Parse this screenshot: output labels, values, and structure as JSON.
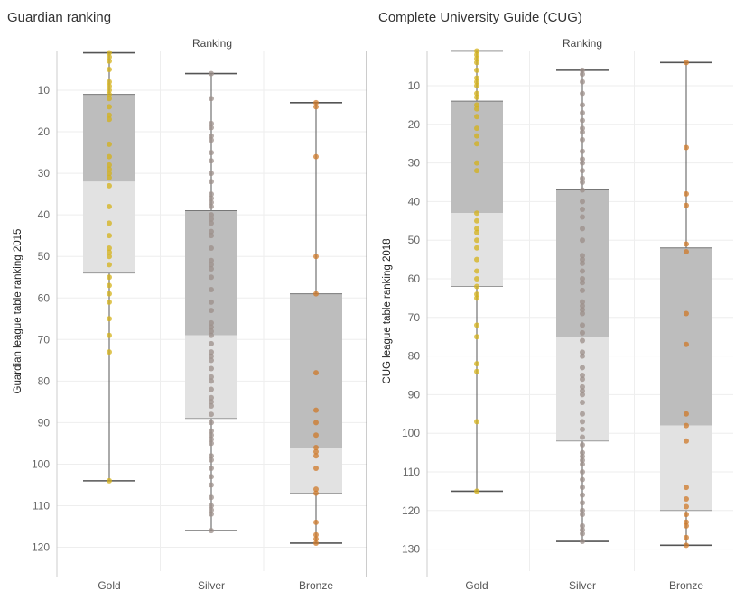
{
  "panels": [
    {
      "title": "Guardian ranking",
      "column_title": "Ranking",
      "ylabel": "Guardian league table ranking 2015"
    },
    {
      "title": "Complete University Guide (CUG)",
      "column_title": "Ranking",
      "ylabel": "CUG league table ranking 2018"
    }
  ],
  "colors": {
    "gold": "#d4b21a",
    "silver": "#9c8f8a",
    "bronze": "#cf7a2a",
    "box_dark": "#bdbdbd",
    "box_light": "#e2e2e2",
    "whisker": "#555555"
  },
  "chart_data": [
    {
      "type": "box",
      "title": "Guardian ranking",
      "column_title": "Ranking",
      "xlabel": "",
      "ylabel": "Guardian league table ranking 2015",
      "categories": [
        "Gold",
        "Silver",
        "Bronze"
      ],
      "y_ticks": [
        10,
        20,
        30,
        40,
        50,
        60,
        70,
        80,
        90,
        100,
        110,
        120
      ],
      "ylim": [
        1,
        123
      ],
      "y_reversed": true,
      "boxes": [
        {
          "name": "Gold",
          "min": 1,
          "q1": 11,
          "median": 32,
          "q3": 54,
          "max": 104
        },
        {
          "name": "Silver",
          "min": 6,
          "q1": 39,
          "median": 69,
          "q3": 89,
          "max": 116
        },
        {
          "name": "Bronze",
          "min": 13,
          "q1": 59,
          "median": 96,
          "q3": 107,
          "max": 119
        }
      ],
      "points": [
        {
          "category": "Gold",
          "values": [
            1,
            2,
            3,
            5,
            8,
            9,
            10,
            11,
            12,
            14,
            16,
            17,
            23,
            26,
            28,
            29,
            30,
            31,
            33,
            38,
            42,
            45,
            48,
            49,
            50,
            52,
            55,
            57,
            59,
            61,
            65,
            69,
            73,
            104
          ]
        },
        {
          "category": "Silver",
          "values": [
            6,
            12,
            18,
            19,
            21,
            22,
            25,
            27,
            30,
            32,
            35,
            36,
            37,
            38,
            40,
            41,
            42,
            44,
            45,
            48,
            51,
            52,
            53,
            55,
            58,
            61,
            63,
            66,
            67,
            68,
            69,
            71,
            73,
            74,
            75,
            77,
            79,
            80,
            82,
            84,
            85,
            86,
            88,
            90,
            92,
            93,
            94,
            95,
            98,
            99,
            101,
            103,
            105,
            108,
            110,
            111,
            112,
            116
          ]
        },
        {
          "category": "Bronze",
          "values": [
            13,
            14,
            26,
            50,
            59,
            78,
            87,
            90,
            93,
            96,
            97,
            98,
            101,
            106,
            107,
            114,
            117,
            118,
            119
          ]
        }
      ]
    },
    {
      "type": "box",
      "title": "Complete University Guide (CUG)",
      "column_title": "Ranking",
      "xlabel": "",
      "ylabel": "CUG league table ranking 2018",
      "categories": [
        "Gold",
        "Silver",
        "Bronze"
      ],
      "y_ticks": [
        10,
        20,
        30,
        40,
        50,
        60,
        70,
        80,
        90,
        100,
        110,
        120,
        130
      ],
      "ylim": [
        1,
        134
      ],
      "y_reversed": true,
      "boxes": [
        {
          "name": "Gold",
          "min": 1,
          "q1": 14,
          "median": 43,
          "q3": 62,
          "max": 115
        },
        {
          "name": "Silver",
          "min": 6,
          "q1": 37,
          "median": 75,
          "q3": 102,
          "max": 128
        },
        {
          "name": "Bronze",
          "min": 4,
          "q1": 52,
          "median": 98,
          "q3": 120,
          "max": 129
        }
      ],
      "points": [
        {
          "category": "Gold",
          "values": [
            1,
            2,
            3,
            4,
            6,
            8,
            9,
            10,
            12,
            13,
            15,
            16,
            18,
            21,
            23,
            25,
            30,
            32,
            43,
            45,
            47,
            48,
            50,
            52,
            55,
            58,
            60,
            62,
            64,
            65,
            72,
            75,
            82,
            84,
            97,
            115
          ]
        },
        {
          "category": "Silver",
          "values": [
            6,
            7,
            9,
            12,
            15,
            17,
            19,
            21,
            22,
            24,
            27,
            29,
            30,
            32,
            34,
            35,
            37,
            40,
            42,
            44,
            47,
            50,
            54,
            55,
            56,
            58,
            60,
            61,
            63,
            66,
            67,
            68,
            69,
            72,
            74,
            76,
            79,
            80,
            83,
            85,
            86,
            88,
            89,
            90,
            92,
            95,
            97,
            99,
            101,
            103,
            105,
            106,
            107,
            108,
            110,
            112,
            114,
            116,
            118,
            120,
            121,
            124,
            125,
            126,
            128
          ]
        },
        {
          "category": "Bronze",
          "values": [
            4,
            26,
            38,
            41,
            51,
            53,
            69,
            77,
            95,
            98,
            102,
            114,
            117,
            119,
            121,
            123,
            124,
            127,
            129
          ]
        }
      ]
    }
  ]
}
